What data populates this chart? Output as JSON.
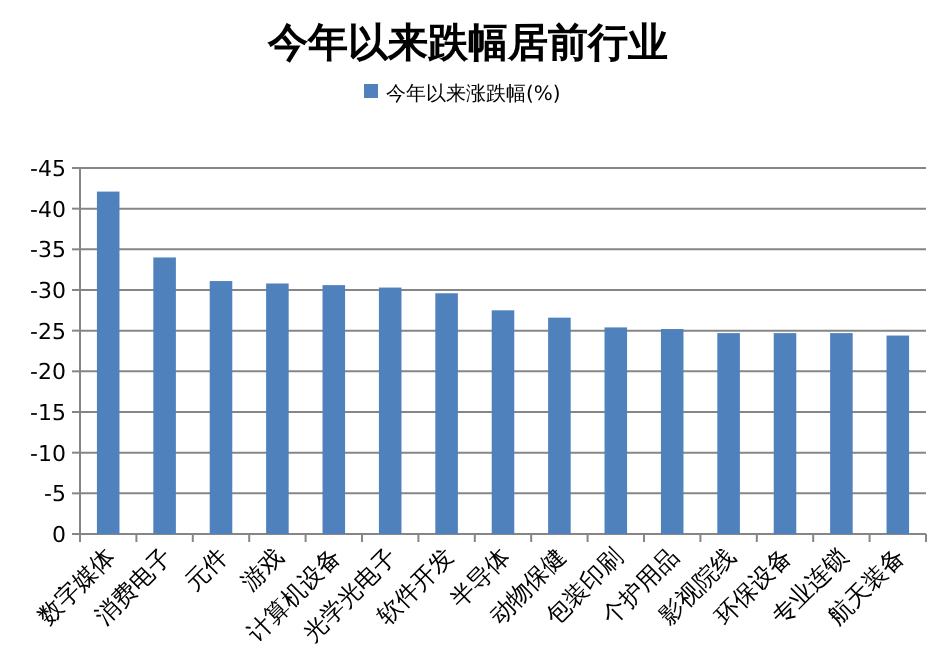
{
  "chart_data": {
    "type": "bar",
    "title": "今年以来跌幅居前行业",
    "categories": [
      "数字媒体",
      "消费电子",
      "元件",
      "游戏",
      "计算机设备",
      "光学光电子",
      "软件开发",
      "半导体",
      "动物保健",
      "包装印刷",
      "个护用品",
      "影视院线",
      "环保设备",
      "专业连锁",
      "航天装备"
    ],
    "series": [
      {
        "name": "今年以来涨跌幅(%)",
        "color": "#4f81bd",
        "values": [
          -42.1,
          -34.0,
          -31.1,
          -30.8,
          -30.6,
          -30.3,
          -29.6,
          -27.5,
          -26.6,
          -25.4,
          -25.2,
          -24.7,
          -24.7,
          -24.7,
          -24.4
        ]
      }
    ],
    "ylim": [
      0,
      -45
    ],
    "yticks": [
      0,
      -5,
      -10,
      -15,
      -20,
      -25,
      -30,
      -35,
      -40,
      -45
    ],
    "grid": "y",
    "legend": "top"
  }
}
